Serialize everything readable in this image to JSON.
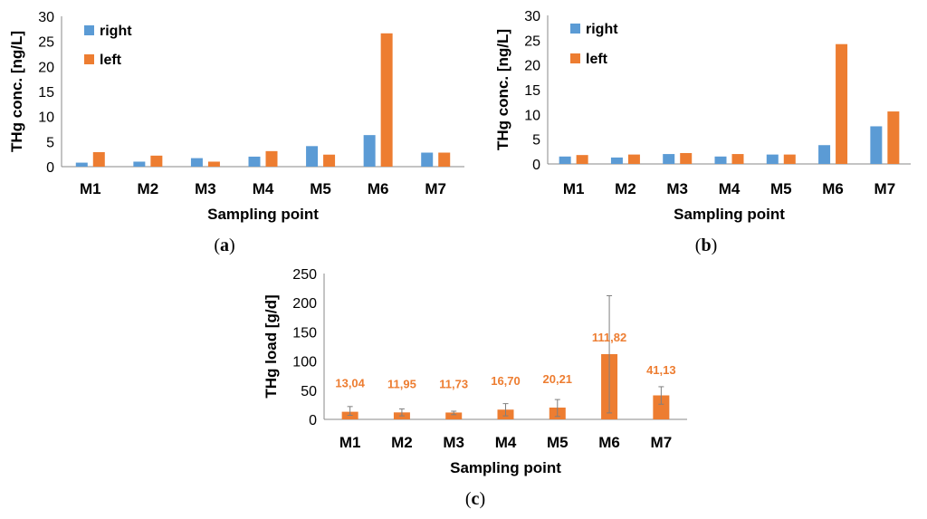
{
  "colors": {
    "right": "#5B9BD5",
    "left": "#ED7D31",
    "axis": "#888888",
    "errbar": "#7f7f7f"
  },
  "chart_data": [
    {
      "id": "a",
      "panel_label_open": "(",
      "panel_label_letter": "a",
      "panel_label_close": ")",
      "type": "bar",
      "categories": [
        "M1",
        "M2",
        "M3",
        "M4",
        "M5",
        "M6",
        "M7"
      ],
      "series": [
        {
          "name": "right",
          "values": [
            0.8,
            1.0,
            1.7,
            2.0,
            4.1,
            6.3,
            2.8
          ]
        },
        {
          "name": "left",
          "values": [
            2.9,
            2.2,
            1.0,
            3.1,
            2.4,
            26.6,
            2.8
          ]
        }
      ],
      "xlabel": "Sampling point",
      "ylabel": "THg conc. [ng/L]",
      "ylim": [
        0,
        30
      ],
      "yticks": [
        0,
        5,
        10,
        15,
        20,
        25,
        30
      ],
      "legend": "top-left"
    },
    {
      "id": "b",
      "panel_label_open": "(",
      "panel_label_letter": "b",
      "panel_label_close": ")",
      "type": "bar",
      "categories": [
        "M1",
        "M2",
        "M3",
        "M4",
        "M5",
        "M6",
        "M7"
      ],
      "series": [
        {
          "name": "right",
          "values": [
            1.5,
            1.3,
            2.0,
            1.5,
            1.9,
            3.8,
            7.6
          ]
        },
        {
          "name": "left",
          "values": [
            1.8,
            1.9,
            2.2,
            2.0,
            1.9,
            24.2,
            10.6
          ]
        }
      ],
      "xlabel": "Sampling point",
      "ylabel": "THg conc. [ng/L]",
      "ylim": [
        0,
        30
      ],
      "yticks": [
        0,
        5,
        10,
        15,
        20,
        25,
        30
      ],
      "legend": "top-left"
    },
    {
      "id": "c",
      "panel_label_open": "(",
      "panel_label_letter": "c",
      "panel_label_close": ")",
      "type": "bar",
      "categories": [
        "M1",
        "M2",
        "M3",
        "M4",
        "M5",
        "M6",
        "M7"
      ],
      "series": [
        {
          "name": "load",
          "values": [
            13.04,
            11.95,
            11.73,
            16.7,
            20.21,
            111.82,
            41.13
          ],
          "labels": [
            "13,04",
            "11,95",
            "11,73",
            "16,70",
            "20,21",
            "111,82",
            "41,13"
          ],
          "err_low": [
            7,
            6,
            8,
            6,
            5,
            11,
            26
          ],
          "err_high": [
            22,
            18,
            14,
            27,
            34,
            212,
            56
          ]
        }
      ],
      "xlabel": "Sampling point",
      "ylabel": "THg load [g/d]",
      "ylim": [
        0,
        250
      ],
      "yticks": [
        0,
        50,
        100,
        150,
        200,
        250
      ]
    }
  ]
}
